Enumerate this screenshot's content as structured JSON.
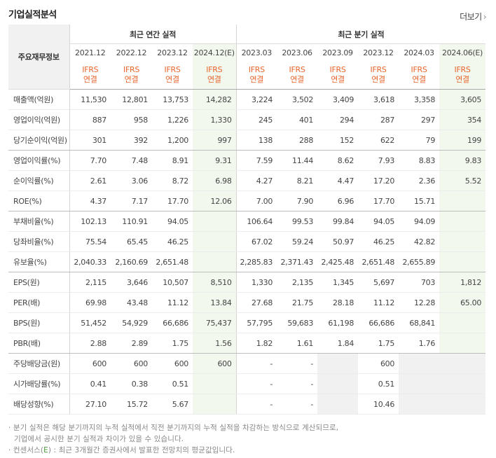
{
  "title": "기업실적분석",
  "more_label": "더보기",
  "header": {
    "row_label": "주요재무정보",
    "annual_group": "최근 연간 실적",
    "quarter_group": "최근 분기 실적",
    "annual_periods": [
      "2021.12",
      "2022.12",
      "2023.12",
      "2024.12(E)"
    ],
    "quarter_periods": [
      "2023.03",
      "2023.06",
      "2023.09",
      "2023.12",
      "2024.03",
      "2024.06(E)"
    ],
    "basis_line1": "IFRS",
    "basis_line2": "연결"
  },
  "rows": [
    {
      "label": "매출액(억원)",
      "values": [
        "11,530",
        "12,801",
        "13,753",
        "14,282",
        "3,224",
        "3,502",
        "3,409",
        "3,618",
        "3,358",
        "3,605"
      ]
    },
    {
      "label": "영업이익(억원)",
      "values": [
        "887",
        "958",
        "1,226",
        "1,330",
        "245",
        "401",
        "294",
        "287",
        "297",
        "354"
      ]
    },
    {
      "label": "당기순이익(억원)",
      "values": [
        "301",
        "392",
        "1,200",
        "997",
        "138",
        "288",
        "152",
        "622",
        "79",
        "199"
      ]
    },
    {
      "label": "영업이익률(%)",
      "values": [
        "7.70",
        "7.48",
        "8.91",
        "9.31",
        "7.59",
        "11.44",
        "8.62",
        "7.93",
        "8.83",
        "9.83"
      ]
    },
    {
      "label": "순이익률(%)",
      "values": [
        "2.61",
        "3.06",
        "8.72",
        "6.98",
        "4.27",
        "8.21",
        "4.47",
        "17.20",
        "2.36",
        "5.52"
      ]
    },
    {
      "label": "ROE(%)",
      "values": [
        "4.37",
        "7.17",
        "17.70",
        "12.06",
        "7.00",
        "7.90",
        "6.96",
        "17.70",
        "15.71",
        ""
      ]
    },
    {
      "label": "부채비율(%)",
      "values": [
        "102.13",
        "110.91",
        "94.05",
        "",
        "106.64",
        "99.53",
        "99.84",
        "94.05",
        "94.09",
        ""
      ]
    },
    {
      "label": "당좌비율(%)",
      "values": [
        "75.54",
        "65.45",
        "46.25",
        "",
        "67.02",
        "59.24",
        "50.97",
        "46.25",
        "42.82",
        ""
      ]
    },
    {
      "label": "유보율(%)",
      "values": [
        "2,040.33",
        "2,160.69",
        "2,651.48",
        "",
        "2,285.83",
        "2,371.43",
        "2,425.48",
        "2,651.48",
        "2,655.89",
        ""
      ]
    },
    {
      "label": "EPS(원)",
      "values": [
        "2,115",
        "3,646",
        "10,507",
        "8,510",
        "1,330",
        "2,135",
        "1,345",
        "5,697",
        "703",
        "1,812"
      ]
    },
    {
      "label": "PER(배)",
      "values": [
        "69.98",
        "43.48",
        "11.12",
        "13.84",
        "27.68",
        "21.75",
        "28.18",
        "11.12",
        "12.28",
        "65.00"
      ]
    },
    {
      "label": "BPS(원)",
      "values": [
        "51,452",
        "54,929",
        "66,686",
        "75,437",
        "57,795",
        "59,683",
        "61,198",
        "66,686",
        "68,841",
        ""
      ]
    },
    {
      "label": "PBR(배)",
      "values": [
        "2.88",
        "2.89",
        "1.75",
        "1.56",
        "1.82",
        "1.61",
        "1.84",
        "1.75",
        "1.76",
        ""
      ]
    },
    {
      "label": "주당배당금(원)",
      "values": [
        "600",
        "600",
        "600",
        "600",
        "-",
        "-",
        "",
        "600",
        "",
        ""
      ]
    },
    {
      "label": "시가배당률(%)",
      "values": [
        "0.41",
        "0.38",
        "0.51",
        "",
        "-",
        "-",
        "",
        "0.51",
        "",
        ""
      ]
    },
    {
      "label": "배당성향(%)",
      "values": [
        "27.10",
        "15.72",
        "5.67",
        "",
        "-",
        "-",
        "",
        "10.46",
        "",
        ""
      ]
    }
  ],
  "notes": {
    "line1": "· 분기 실적은 해당 분기까지의 누적 실적에서 직전 분기까지의 누적 실적을 차감하는 방식으로 계산되므로,",
    "line2": "기업에서 공시한 분기 실적과 차이가 있을 수 있습니다.",
    "line3_prefix": "· 컨센서스(",
    "line3_mark": "E",
    "line3_suffix": ") : 최근 3개월간 증권사에서 발표한 전망치의 평균값입니다."
  }
}
